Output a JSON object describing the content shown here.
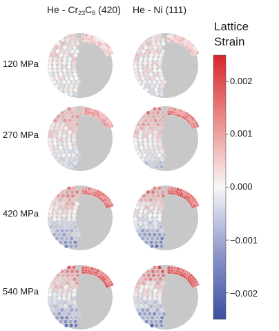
{
  "columns": {
    "cr23c6": {
      "prefix": "He - Cr",
      "sub1": "23",
      "mid": "C",
      "sub2": "6",
      "suffix": " (420)"
    },
    "ni": {
      "label": "He - Ni (111)"
    }
  },
  "rows": [
    "120 MPa",
    "270 MPa",
    "420 MPa",
    "540 MPa"
  ],
  "colorbar": {
    "title_line1": "Lattice",
    "title_line2": "Strain",
    "ticks": [
      "0.002",
      "0.001",
      "0.000",
      "−0.001",
      "−0.002"
    ],
    "colors": {
      "positive": "#d42b2f",
      "zero": "#f7f7f7",
      "negative": "#3a4fa0",
      "sphere": "#c8c8c8"
    }
  },
  "chart_data": {
    "type": "heatmap",
    "title": "",
    "colorbar_label": "Lattice Strain",
    "colorbar_range": [
      -0.0025,
      0.0025
    ],
    "colorbar_ticks": [
      0.002,
      0.001,
      0.0,
      -0.001,
      -0.002
    ],
    "columns": [
      "He - Cr23C6 (420)",
      "He - Ni (111)"
    ],
    "rows": [
      "120 MPa",
      "270 MPa",
      "420 MPa",
      "540 MPa"
    ],
    "panels": [
      {
        "row": "120 MPa",
        "column": "He - Cr23C6 (420)",
        "strain_top": 0.0006,
        "strain_bottom": -0.0002
      },
      {
        "row": "120 MPa",
        "column": "He - Ni (111)",
        "strain_top": 0.0007,
        "strain_bottom": -0.0003
      },
      {
        "row": "270 MPa",
        "column": "He - Cr23C6 (420)",
        "strain_top": 0.0012,
        "strain_bottom": -0.0006
      },
      {
        "row": "270 MPa",
        "column": "He - Ni (111)",
        "strain_top": 0.0016,
        "strain_bottom": -0.0008
      },
      {
        "row": "420 MPa",
        "column": "He - Cr23C6 (420)",
        "strain_top": 0.0016,
        "strain_bottom": -0.0016
      },
      {
        "row": "420 MPa",
        "column": "He - Ni (111)",
        "strain_top": 0.0019,
        "strain_bottom": -0.002
      },
      {
        "row": "540 MPa",
        "column": "He - Cr23C6 (420)",
        "strain_top": 0.0019,
        "strain_bottom": -0.0019
      },
      {
        "row": "540 MPa",
        "column": "He - Ni (111)",
        "strain_top": 0.002,
        "strain_bottom": -0.002
      }
    ]
  }
}
